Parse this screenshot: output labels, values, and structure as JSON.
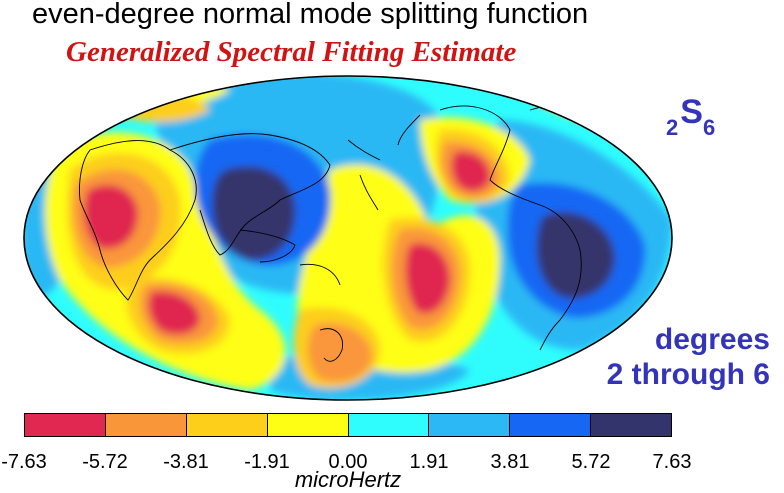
{
  "title": "even-degree normal mode splitting function",
  "subtitle": "Generalized Spectral Fitting Estimate",
  "mode_label": {
    "lead_sub": "2",
    "letter": "S",
    "trail_sub": "6"
  },
  "degrees_note": {
    "line1": "degrees",
    "line2": "2 through 6"
  },
  "colorbar": {
    "unit": "microHertz",
    "ticks": [
      "-7.63",
      "-5.72",
      "-3.81",
      "-1.91",
      "0.00",
      "1.91",
      "3.81",
      "5.72",
      "7.63"
    ],
    "colors": [
      "#e02850",
      "#fa963a",
      "#fdce1a",
      "#fefe14",
      "#2ffdfd",
      "#2bb8f4",
      "#1668f4",
      "#34346c"
    ]
  },
  "map": {
    "projection": "Mollweide (Hammer-type ellipse)",
    "coastlines": true
  }
}
